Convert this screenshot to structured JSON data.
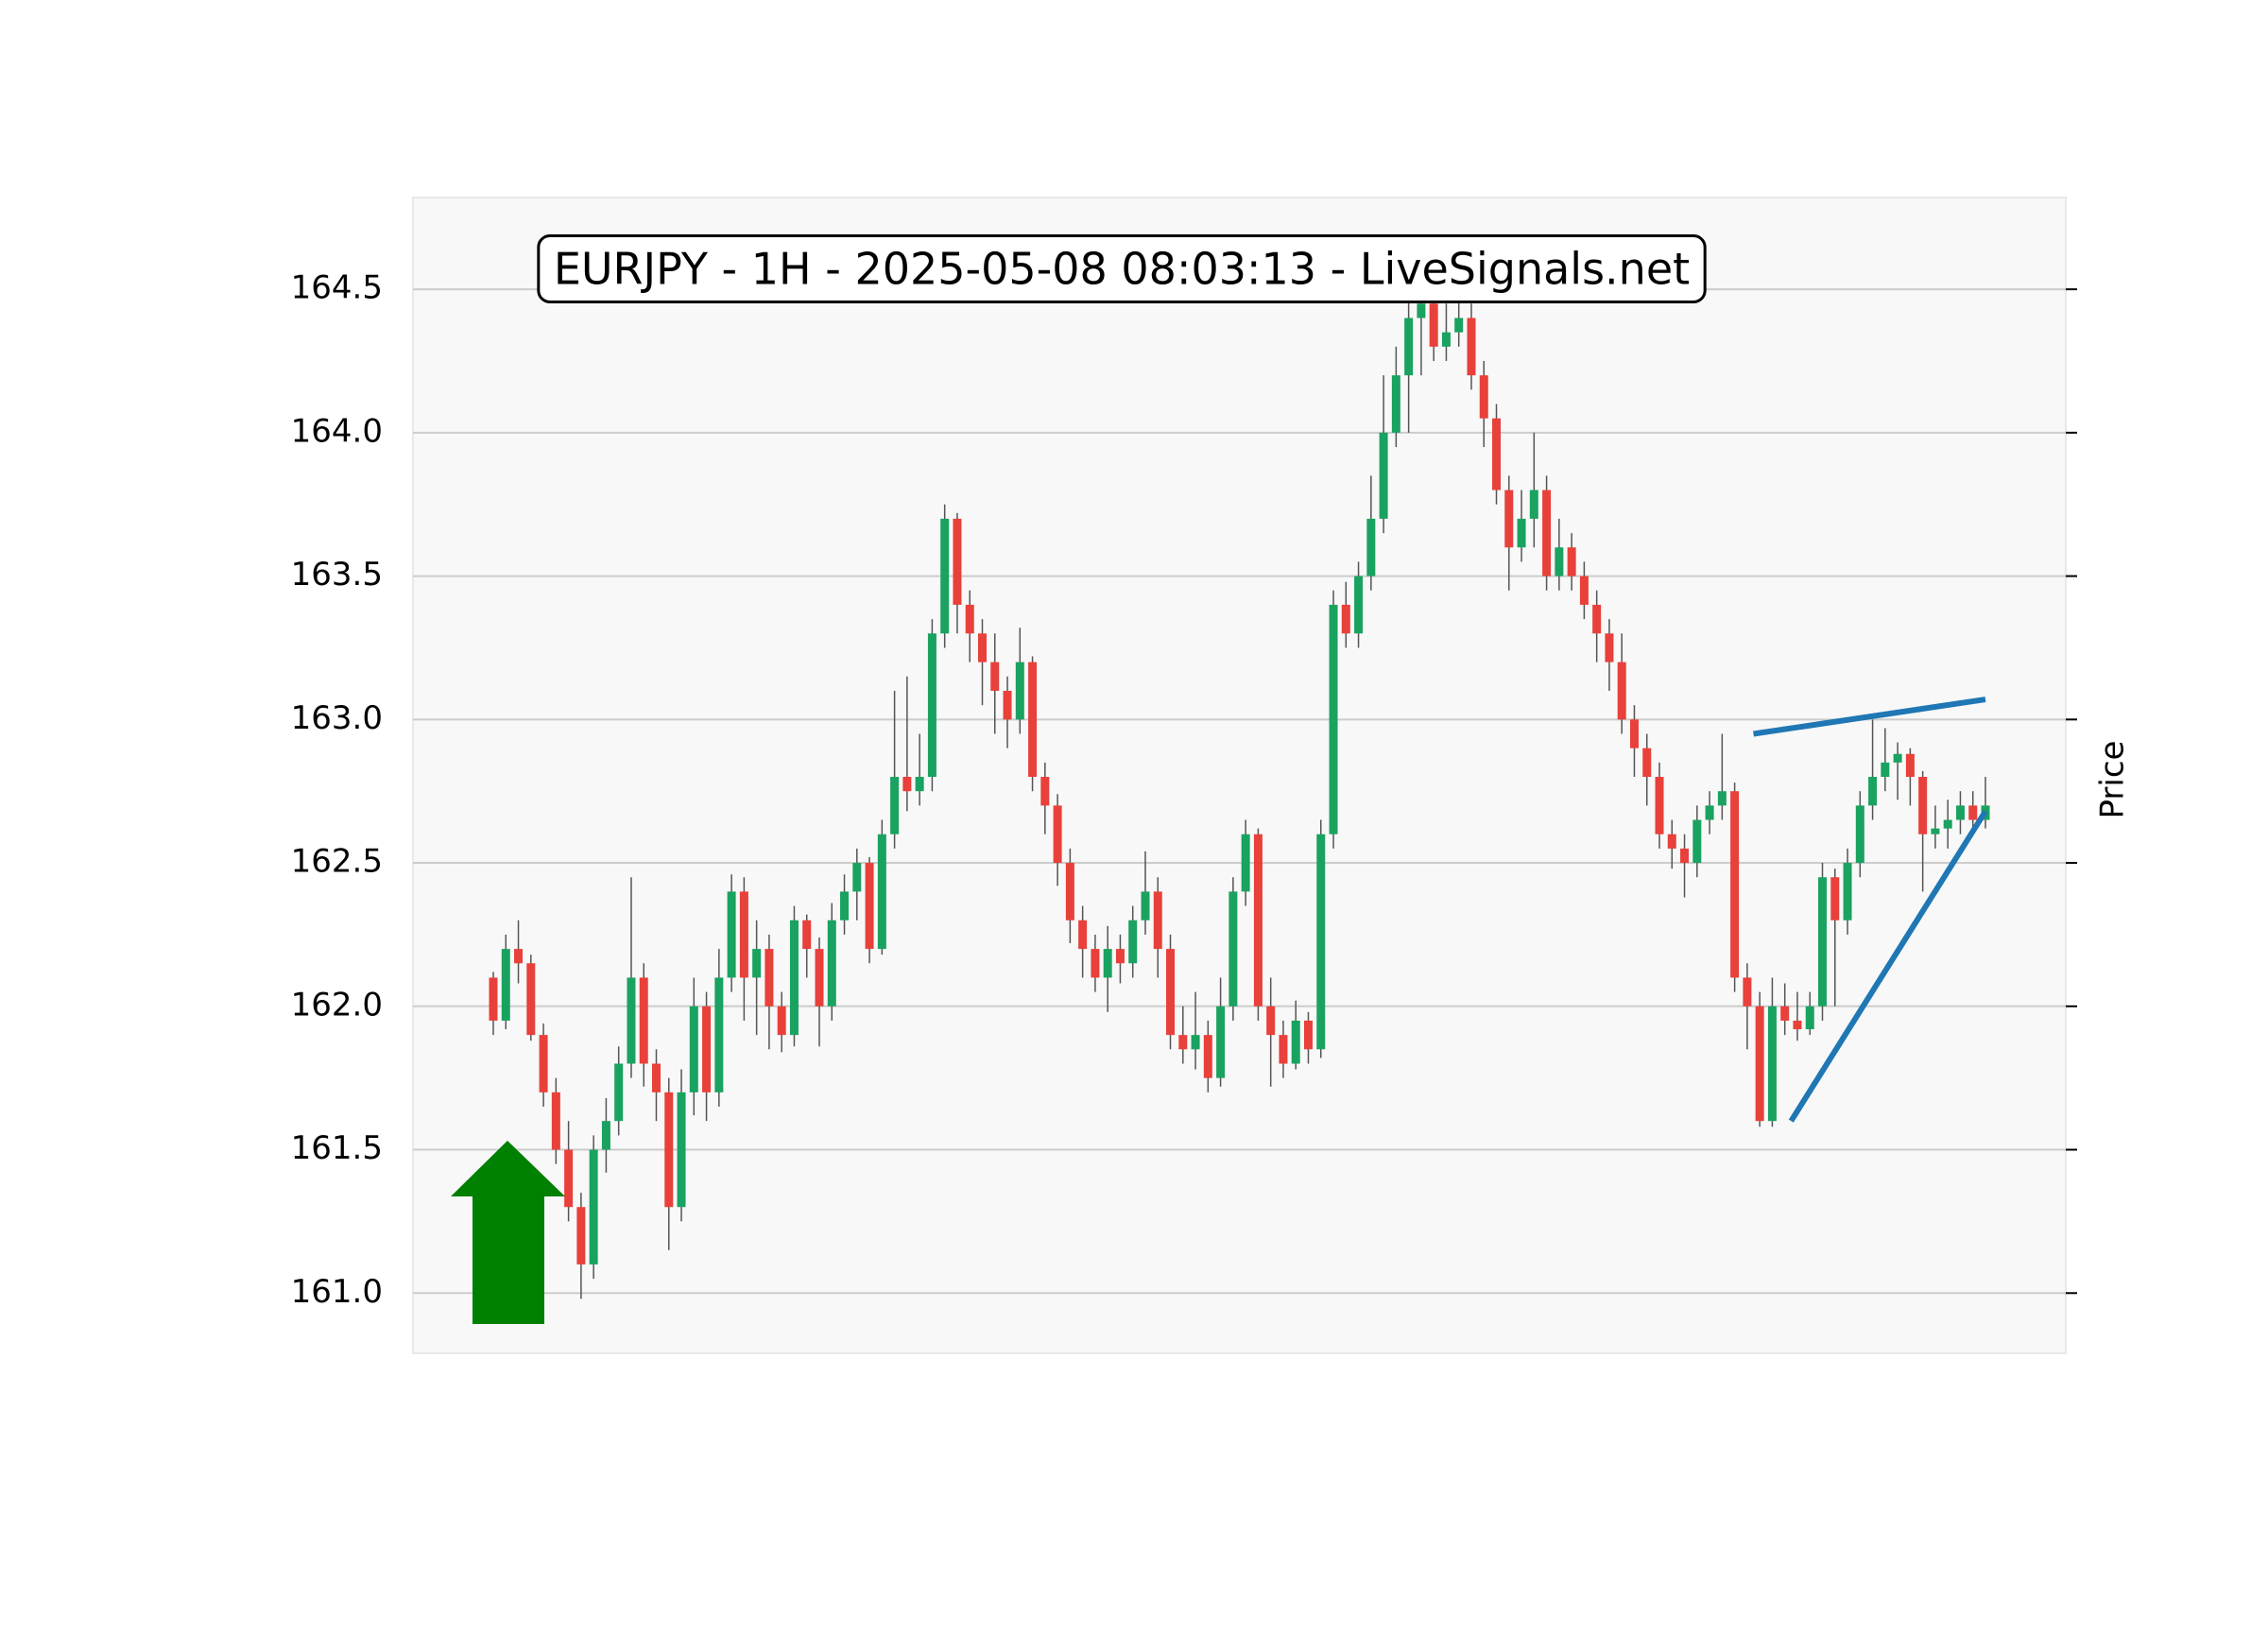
{
  "chart_data": {
    "type": "candlestick",
    "title": "EURJPY - 1H - 2025-05-08 08:03:13 - LiveSignals.net",
    "y_label": "Price",
    "ylim": [
      160.79,
      164.82
    ],
    "yticks": [
      {
        "value": 161,
        "label": "161.0"
      },
      {
        "value": 161.5,
        "label": "161.5"
      },
      {
        "value": 162,
        "label": "162.0"
      },
      {
        "value": 162.5,
        "label": "162.5"
      },
      {
        "value": 163,
        "label": "163.0"
      },
      {
        "value": 163.5,
        "label": "163.5"
      },
      {
        "value": 164,
        "label": "164.0"
      },
      {
        "value": 164.5,
        "label": "164.5"
      }
    ],
    "grid": true,
    "up_color": "#1aa260",
    "down_color": "#e8403a",
    "wick_color": "#555555",
    "open": [
      162.1,
      161.95,
      162.2,
      162.15,
      161.9,
      161.7,
      161.5,
      161.3,
      161.1,
      161.5,
      161.6,
      161.8,
      162.1,
      161.8,
      161.7,
      161.3,
      161.7,
      162.0,
      161.7,
      162.1,
      162.4,
      162.1,
      162.2,
      162.0,
      161.9,
      162.3,
      162.2,
      162.0,
      162.3,
      162.4,
      162.5,
      162.2,
      162.6,
      162.8,
      162.75,
      162.8,
      163.3,
      163.7,
      163.4,
      163.3,
      163.2,
      163.1,
      163.0,
      163.2,
      162.8,
      162.7,
      162.5,
      162.3,
      162.2,
      162.1,
      162.2,
      162.15,
      162.3,
      162.4,
      162.2,
      161.9,
      161.85,
      161.9,
      161.75,
      162.0,
      162.4,
      162.6,
      162.0,
      161.9,
      161.8,
      161.95,
      161.85,
      162.6,
      163.4,
      163.3,
      163.5,
      163.7,
      164.0,
      164.2,
      164.4,
      164.45,
      164.3,
      164.35,
      164.4,
      164.2,
      164.05,
      163.8,
      163.6,
      163.7,
      163.8,
      163.5,
      163.6,
      163.5,
      163.4,
      163.3,
      163.2,
      163.0,
      162.9,
      162.8,
      162.6,
      162.55,
      162.5,
      162.65,
      162.7,
      162.75,
      162.1,
      162.0,
      161.6,
      162.0,
      161.95,
      161.92,
      162.0,
      162.45,
      162.3,
      162.5,
      162.7,
      162.8,
      162.85,
      162.88,
      162.8,
      162.6,
      162.62,
      162.65,
      162.7,
      162.65
    ],
    "high": [
      162.12,
      162.25,
      162.3,
      162.18,
      161.94,
      161.75,
      161.6,
      161.35,
      161.55,
      161.68,
      161.86,
      162.45,
      162.15,
      161.85,
      161.75,
      161.78,
      162.1,
      162.05,
      162.2,
      162.46,
      162.45,
      162.3,
      162.25,
      162.05,
      162.35,
      162.32,
      162.24,
      162.36,
      162.46,
      162.55,
      162.52,
      162.65,
      163.1,
      163.15,
      162.95,
      163.35,
      163.75,
      163.72,
      163.45,
      163.35,
      163.3,
      163.15,
      163.32,
      163.22,
      162.85,
      162.74,
      162.55,
      162.35,
      162.25,
      162.28,
      162.25,
      162.35,
      162.54,
      162.45,
      162.25,
      162.0,
      162.05,
      161.95,
      162.1,
      162.45,
      162.65,
      162.62,
      162.1,
      161.95,
      162.02,
      161.98,
      162.65,
      163.45,
      163.48,
      163.55,
      163.85,
      164.2,
      164.3,
      164.5,
      164.5,
      164.5,
      164.45,
      164.5,
      164.45,
      164.25,
      164.1,
      163.85,
      163.8,
      164.0,
      163.85,
      163.7,
      163.65,
      163.55,
      163.45,
      163.35,
      163.3,
      163.05,
      162.95,
      162.85,
      162.65,
      162.6,
      162.7,
      162.75,
      162.95,
      162.78,
      162.15,
      162.05,
      162.1,
      162.08,
      162.05,
      162.05,
      162.5,
      162.48,
      162.55,
      162.75,
      163.0,
      162.97,
      162.92,
      162.9,
      162.82,
      162.7,
      162.72,
      162.75,
      162.75,
      162.8
    ],
    "low": [
      161.9,
      161.92,
      162.08,
      161.88,
      161.65,
      161.45,
      161.25,
      160.98,
      161.05,
      161.42,
      161.55,
      161.75,
      161.72,
      161.6,
      161.15,
      161.25,
      161.62,
      161.6,
      161.65,
      162.05,
      161.95,
      161.9,
      161.85,
      161.84,
      161.86,
      162.1,
      161.86,
      161.95,
      162.25,
      162.3,
      162.15,
      162.18,
      162.55,
      162.68,
      162.7,
      162.75,
      163.25,
      163.3,
      163.2,
      163.05,
      162.95,
      162.9,
      162.95,
      162.75,
      162.6,
      162.42,
      162.22,
      162.1,
      162.05,
      161.98,
      162.08,
      162.1,
      162.25,
      162.1,
      161.85,
      161.8,
      161.78,
      161.7,
      161.72,
      161.95,
      162.35,
      161.95,
      161.72,
      161.75,
      161.78,
      161.8,
      161.82,
      162.55,
      163.25,
      163.25,
      163.45,
      163.65,
      163.95,
      164.0,
      164.2,
      164.25,
      164.25,
      164.3,
      164.15,
      163.95,
      163.75,
      163.45,
      163.55,
      163.6,
      163.45,
      163.45,
      163.45,
      163.35,
      163.2,
      163.1,
      162.95,
      162.8,
      162.7,
      162.55,
      162.48,
      162.38,
      162.45,
      162.6,
      162.65,
      162.05,
      161.85,
      161.58,
      161.58,
      161.9,
      161.88,
      161.9,
      161.95,
      162.0,
      162.25,
      162.45,
      162.65,
      162.75,
      162.72,
      162.7,
      162.4,
      162.55,
      162.55,
      162.6,
      162.6,
      162.62
    ],
    "close": [
      161.95,
      162.2,
      162.15,
      161.9,
      161.7,
      161.5,
      161.3,
      161.1,
      161.5,
      161.6,
      161.8,
      162.1,
      161.8,
      161.7,
      161.3,
      161.7,
      162.0,
      161.7,
      162.1,
      162.4,
      162.1,
      162.2,
      162.0,
      161.9,
      162.3,
      162.2,
      162.0,
      162.3,
      162.4,
      162.5,
      162.2,
      162.6,
      162.8,
      162.75,
      162.8,
      163.3,
      163.7,
      163.4,
      163.3,
      163.2,
      163.1,
      163.0,
      163.2,
      162.8,
      162.7,
      162.5,
      162.3,
      162.2,
      162.1,
      162.2,
      162.15,
      162.3,
      162.4,
      162.2,
      161.9,
      161.85,
      161.9,
      161.75,
      162.0,
      162.4,
      162.6,
      162.0,
      161.9,
      161.8,
      161.95,
      161.85,
      162.6,
      163.4,
      163.3,
      163.5,
      163.7,
      164.0,
      164.2,
      164.4,
      164.45,
      164.3,
      164.35,
      164.4,
      164.2,
      164.05,
      163.8,
      163.6,
      163.7,
      163.8,
      163.5,
      163.6,
      163.5,
      163.4,
      163.3,
      163.2,
      163.0,
      162.9,
      162.8,
      162.6,
      162.55,
      162.5,
      162.65,
      162.7,
      162.75,
      162.1,
      162.0,
      161.6,
      162.0,
      161.95,
      161.92,
      162.0,
      162.45,
      162.3,
      162.5,
      162.7,
      162.8,
      162.85,
      162.88,
      162.8,
      162.6,
      162.62,
      162.65,
      162.7,
      162.65,
      162.7
    ],
    "trendlines": [
      {
        "color": "#1f77b4",
        "x": [
          100.5,
          119
        ],
        "y": [
          162.95,
          163.07
        ]
      },
      {
        "color": "#1f77b4",
        "x": [
          103.5,
          119
        ],
        "y": [
          161.6,
          162.68
        ]
      }
    ]
  }
}
